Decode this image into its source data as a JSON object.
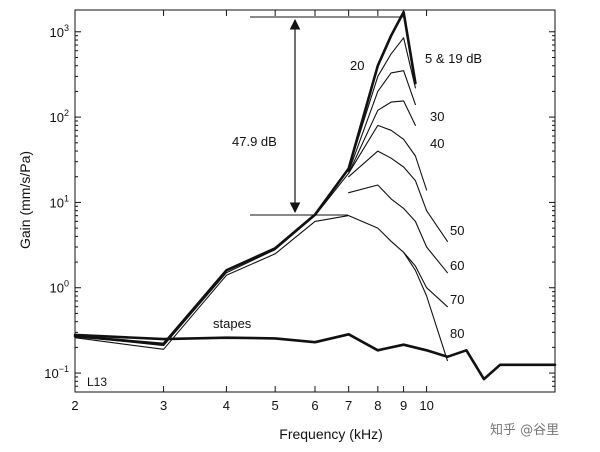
{
  "chart_data": {
    "type": "line",
    "title": "",
    "xlabel": "Frequency (kHz)",
    "ylabel": "Gain (mm/s/Pa)",
    "x_scale": "log",
    "y_scale": "log",
    "xlim": [
      2,
      18
    ],
    "ylim": [
      0.06,
      1800
    ],
    "grid": false,
    "x_ticks": [
      2,
      3,
      4,
      5,
      6,
      7,
      8,
      9,
      10
    ],
    "x_tick_labels": [
      "2",
      "3",
      "4",
      "5",
      "6",
      "7",
      "8",
      "9",
      "10"
    ],
    "y_ticks": [
      0.1,
      1,
      10,
      100,
      1000
    ],
    "y_tick_base": "10",
    "y_tick_exponents": [
      "−1",
      "0",
      "1",
      "2",
      "3"
    ],
    "series": [
      {
        "name": "5 & 19 dB",
        "bold": true,
        "x": [
          2,
          3,
          4,
          5,
          6,
          7,
          8,
          8.5,
          9,
          9.5
        ],
        "y": [
          0.27,
          0.22,
          1.6,
          2.9,
          7.2,
          25,
          400,
          900,
          1700,
          250
        ]
      },
      {
        "name": "20",
        "x": [
          7,
          8,
          8.5,
          9,
          9.5
        ],
        "y": [
          25,
          300,
          550,
          850,
          220
        ]
      },
      {
        "name": "30",
        "x": [
          7,
          8,
          8.5,
          9,
          9.5
        ],
        "y": [
          23,
          200,
          330,
          350,
          140
        ]
      },
      {
        "name": "40",
        "x": [
          2,
          3,
          4,
          5,
          6,
          7,
          8,
          8.5,
          9,
          9.5
        ],
        "y": [
          0.27,
          0.21,
          1.5,
          2.8,
          7,
          22,
          120,
          150,
          155,
          80
        ]
      },
      {
        "name": "",
        "x": [
          7,
          8,
          8.5,
          9,
          9.5,
          10
        ],
        "y": [
          22,
          80,
          70,
          55,
          35,
          14
        ]
      },
      {
        "name": "50",
        "x": [
          7,
          8,
          8.5,
          9,
          9.5,
          10,
          11
        ],
        "y": [
          20,
          40,
          33,
          26,
          18,
          8,
          3.5
        ]
      },
      {
        "name": "60",
        "x": [
          7,
          8,
          8.5,
          9,
          9.5,
          10,
          11
        ],
        "y": [
          13,
          16,
          11,
          8.5,
          6,
          3,
          1.5
        ]
      },
      {
        "name": "70",
        "x": [
          2,
          3,
          4,
          5,
          6,
          7,
          8,
          8.5,
          9,
          9.5,
          10,
          11
        ],
        "y": [
          0.26,
          0.19,
          1.4,
          2.5,
          6,
          7,
          5,
          3.5,
          2.6,
          1.8,
          1,
          0.6
        ]
      },
      {
        "name": "80",
        "x": [
          9,
          9.5,
          10,
          11
        ],
        "y": [
          2.6,
          1.6,
          0.8,
          0.14
        ]
      },
      {
        "name": "stapes",
        "bold": true,
        "x": [
          2,
          3,
          4,
          5,
          6,
          7,
          8,
          9,
          10,
          11,
          12,
          13,
          14,
          16,
          18
        ],
        "y": [
          0.28,
          0.25,
          0.26,
          0.255,
          0.23,
          0.285,
          0.185,
          0.215,
          0.185,
          0.155,
          0.185,
          0.085,
          0.125,
          0.125,
          0.125
        ]
      }
    ],
    "annotations": {
      "series_labels": [
        "20",
        "5 & 19 dB",
        "30",
        "40",
        "50",
        "60",
        "70",
        "80"
      ],
      "stapes_label": "stapes",
      "gain_difference": "47.9 dB",
      "panel_id": "L13"
    }
  },
  "watermark": "知乎 @谷里"
}
